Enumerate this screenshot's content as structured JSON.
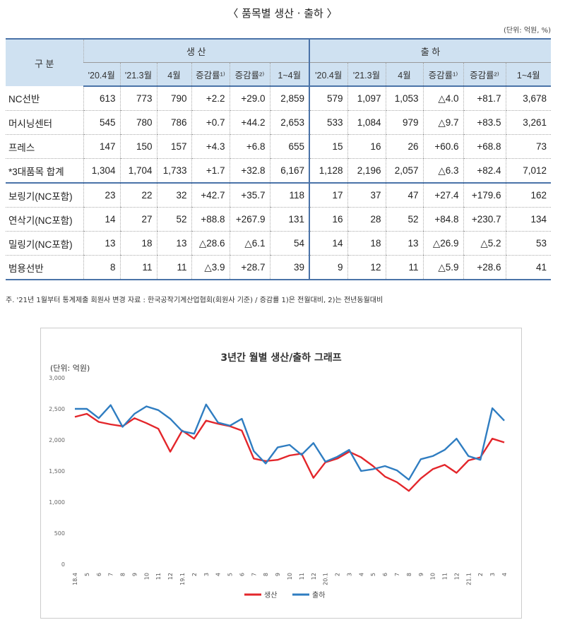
{
  "page": {
    "title": "〈 품목별 생산 · 출하 〉",
    "unit": "(단위: 억원, %)",
    "note": "주. '21년 1월부터 통계제출 회원사 변경      자료 : 한국공작기계산업협회(회원사 기준) / 증감률 1)은 전월대비, 2)는 전년동월대비"
  },
  "table": {
    "corner": "구 분",
    "group_production": "생 산",
    "group_shipment": "출 하",
    "subheaders": [
      "'20.4월",
      "'21.3월",
      "4월",
      "증감률¹⁾",
      "증감률²⁾",
      "1~4월"
    ],
    "rows": [
      {
        "item": "NC선반",
        "p": [
          "613",
          "773",
          "790",
          "+2.2",
          "+29.0",
          "2,859"
        ],
        "s": [
          "579",
          "1,097",
          "1,053",
          "△4.0",
          "+81.7",
          "3,678"
        ]
      },
      {
        "item": "머시닝센터",
        "p": [
          "545",
          "780",
          "786",
          "+0.7",
          "+44.2",
          "2,653"
        ],
        "s": [
          "533",
          "1,084",
          "979",
          "△9.7",
          "+83.5",
          "3,261"
        ]
      },
      {
        "item": "프레스",
        "p": [
          "147",
          "150",
          "157",
          "+4.3",
          "+6.8",
          "655"
        ],
        "s": [
          "15",
          "16",
          "26",
          "+60.6",
          "+68.8",
          "73"
        ]
      },
      {
        "item": "*3대품목 합계",
        "p": [
          "1,304",
          "1,704",
          "1,733",
          "+1.7",
          "+32.8",
          "6,167"
        ],
        "s": [
          "1,128",
          "2,196",
          "2,057",
          "△6.3",
          "+82.4",
          "7,012"
        ]
      },
      {
        "item": "보링기(NC포함)",
        "p": [
          "23",
          "22",
          "32",
          "+42.7",
          "+35.7",
          "118"
        ],
        "s": [
          "17",
          "37",
          "47",
          "+27.4",
          "+179.6",
          "162"
        ]
      },
      {
        "item": "연삭기(NC포함)",
        "p": [
          "14",
          "27",
          "52",
          "+88.8",
          "+267.9",
          "131"
        ],
        "s": [
          "16",
          "28",
          "52",
          "+84.8",
          "+230.7",
          "134"
        ]
      },
      {
        "item": "밀링기(NC포함)",
        "p": [
          "13",
          "18",
          "13",
          "△28.6",
          "△6.1",
          "54"
        ],
        "s": [
          "14",
          "18",
          "13",
          "△26.9",
          "△5.2",
          "53"
        ]
      },
      {
        "item": "범용선반",
        "p": [
          "8",
          "11",
          "11",
          "△3.9",
          "+28.7",
          "39"
        ],
        "s": [
          "9",
          "12",
          "11",
          "△5.9",
          "+28.6",
          "41"
        ]
      }
    ]
  },
  "chart_data": {
    "type": "line",
    "title": "3년간 월별 생산/출하 그래프",
    "ylabel": "(단위: 억원)",
    "ylim": [
      0,
      3000
    ],
    "yticks": [
      "0",
      "500",
      "1,000",
      "1,500",
      "2,000",
      "2,500",
      "3,000"
    ],
    "x": [
      "18.4",
      "5",
      "6",
      "7",
      "8",
      "9",
      "10",
      "11",
      "12",
      "19.1",
      "2",
      "3",
      "4",
      "5",
      "6",
      "7",
      "8",
      "9",
      "10",
      "11",
      "12",
      "20.1",
      "2",
      "3",
      "4",
      "5",
      "6",
      "7",
      "8",
      "9",
      "10",
      "11",
      "12",
      "21.1",
      "2",
      "3",
      "4"
    ],
    "series": [
      {
        "name": "생산",
        "color": "#e3262b",
        "values": [
          2370,
          2420,
          2290,
          2250,
          2220,
          2350,
          2270,
          2180,
          1810,
          2150,
          2020,
          2310,
          2260,
          2220,
          2150,
          1700,
          1660,
          1680,
          1750,
          1780,
          1390,
          1640,
          1700,
          1810,
          1720,
          1580,
          1410,
          1320,
          1180,
          1380,
          1530,
          1600,
          1470,
          1670,
          1720,
          2020,
          1960
        ]
      },
      {
        "name": "출하",
        "color": "#2f7dc1",
        "values": [
          2500,
          2500,
          2350,
          2560,
          2210,
          2420,
          2540,
          2480,
          2340,
          2140,
          2100,
          2570,
          2280,
          2230,
          2340,
          1820,
          1620,
          1880,
          1920,
          1760,
          1950,
          1650,
          1730,
          1840,
          1500,
          1530,
          1580,
          1510,
          1360,
          1690,
          1740,
          1840,
          2020,
          1740,
          1680,
          2510,
          2310
        ]
      }
    ],
    "legend": "bottom-center",
    "grid": false
  }
}
